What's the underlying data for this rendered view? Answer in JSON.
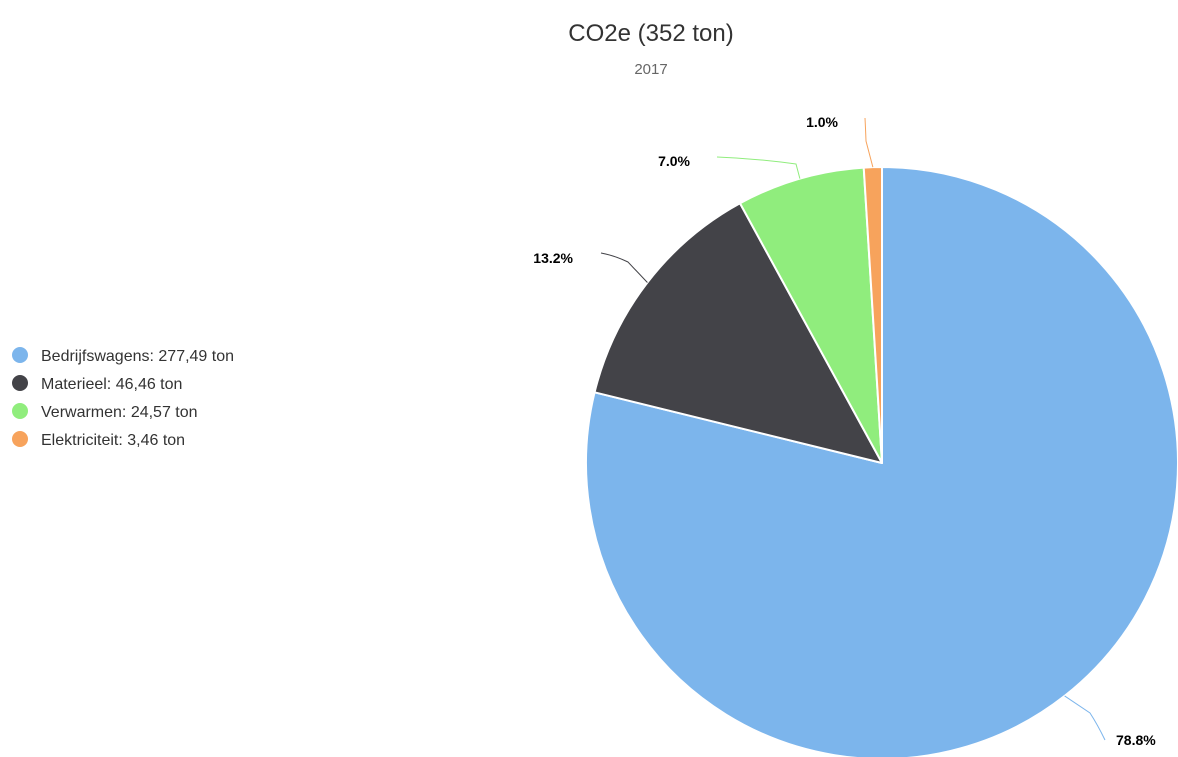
{
  "chart_data": {
    "type": "pie",
    "title": "CO2e (352 ton)",
    "subtitle": "2017",
    "legend_position": "left",
    "start_angle_deg": 0,
    "slices": [
      {
        "name": "Bedrijfswagens",
        "legend": "Bedrijfswagens: 277,49 ton",
        "value": 277.49,
        "label": "78.8%",
        "color": "#7cb5ec"
      },
      {
        "name": "Materieel",
        "legend": "Materieel: 46,46 ton",
        "value": 46.46,
        "label": "13.2%",
        "color": "#434348"
      },
      {
        "name": "Verwarmen",
        "legend": "Verwarmen: 24,57 ton",
        "value": 24.57,
        "label": "7.0%",
        "color": "#90ed7d"
      },
      {
        "name": "Elektriciteit",
        "legend": "Elektriciteit: 3,46 ton",
        "value": 3.46,
        "label": "1.0%",
        "color": "#f7a35c"
      }
    ]
  }
}
